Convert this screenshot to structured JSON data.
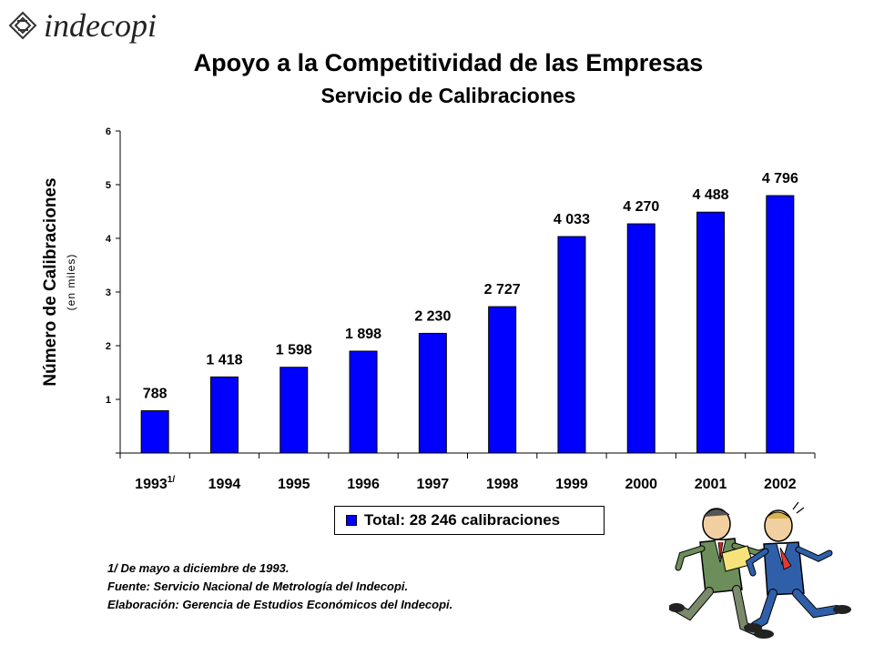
{
  "logo": {
    "text": "indecopi",
    "icon": "indecopi-logo-icon"
  },
  "header": {
    "title": "Apoyo a la Competitividad de las Empresas",
    "subtitle": "Servicio de Calibraciones"
  },
  "axis": {
    "ylabel": "Número de Calibraciones",
    "yunit": "(en miles)",
    "yticks": [
      "1",
      "2",
      "3",
      "4",
      "5",
      "6"
    ]
  },
  "chart_data": {
    "type": "bar",
    "title": "Apoyo a la Competitividad de las Empresas",
    "subtitle": "Servicio de Calibraciones",
    "ylabel": "Número de Calibraciones (en miles)",
    "xlabel": "",
    "ylim": [
      0,
      6
    ],
    "categories": [
      "1993",
      "1994",
      "1995",
      "1996",
      "1997",
      "1998",
      "1999",
      "2000",
      "2001",
      "2002"
    ],
    "category_notes": [
      "1/",
      "",
      "",
      "",
      "",
      "",
      "",
      "",
      "",
      ""
    ],
    "values": [
      788,
      1418,
      1598,
      1898,
      2230,
      2727,
      4033,
      4270,
      4488,
      4796
    ],
    "data_labels": [
      "788",
      "1 418",
      "1 598",
      "1 898",
      "2 230",
      "2 727",
      "4 033",
      "4 270",
      "4 488",
      "4 796"
    ],
    "bar_color": "#0000ff",
    "grid": false,
    "legend": "Total: 28 246 calibraciones",
    "legend_position": "bottom-center"
  },
  "legend": {
    "text": "Total: 28 246 calibraciones",
    "color": "#0000ff"
  },
  "notes": {
    "note1": "1/ De mayo a diciembre de 1993.",
    "source": "Fuente: Servicio Nacional de Metrología del Indecopi.",
    "elaboration": "Elaboración: Gerencia de Estudios Económicos del Indecopi."
  },
  "illustration": {
    "icon": "running-businessmen-illustration"
  }
}
